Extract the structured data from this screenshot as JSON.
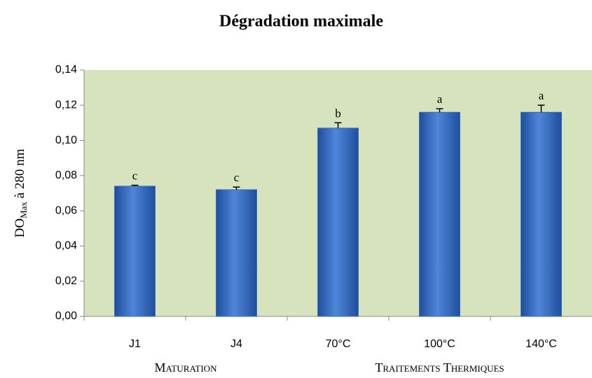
{
  "chart_data": {
    "type": "bar",
    "title": "Dégradation maximale",
    "ylabel": {
      "main": "DO",
      "sub": "Max",
      "rest": " à 280 nm"
    },
    "categories": [
      "J1",
      "J4",
      "70°C",
      "100°C",
      "140°C"
    ],
    "values": [
      0.074,
      0.072,
      0.107,
      0.116,
      0.116
    ],
    "errors": [
      0.0005,
      0.0015,
      0.003,
      0.002,
      0.004
    ],
    "annotations": [
      "c",
      "c",
      "b",
      "a",
      "a"
    ],
    "groups": [
      {
        "label": "Maturation",
        "start": 0,
        "end": 1
      },
      {
        "label": "Traitements Thermiques",
        "start": 2,
        "end": 4
      }
    ],
    "color": "#3b6fc4",
    "background": "#d7e3bc",
    "ylim": [
      0,
      0.14
    ],
    "yticks": [
      {
        "value": 0,
        "label": "0,00"
      },
      {
        "value": 0.02,
        "label": "0,02"
      },
      {
        "value": 0.04,
        "label": "0,04"
      },
      {
        "value": 0.06,
        "label": "0,06"
      },
      {
        "value": 0.08,
        "label": "0,08"
      },
      {
        "value": 0.1,
        "label": "0,10"
      },
      {
        "value": 0.12,
        "label": "0,12"
      },
      {
        "value": 0.14,
        "label": "0,14"
      }
    ],
    "grid": false
  }
}
